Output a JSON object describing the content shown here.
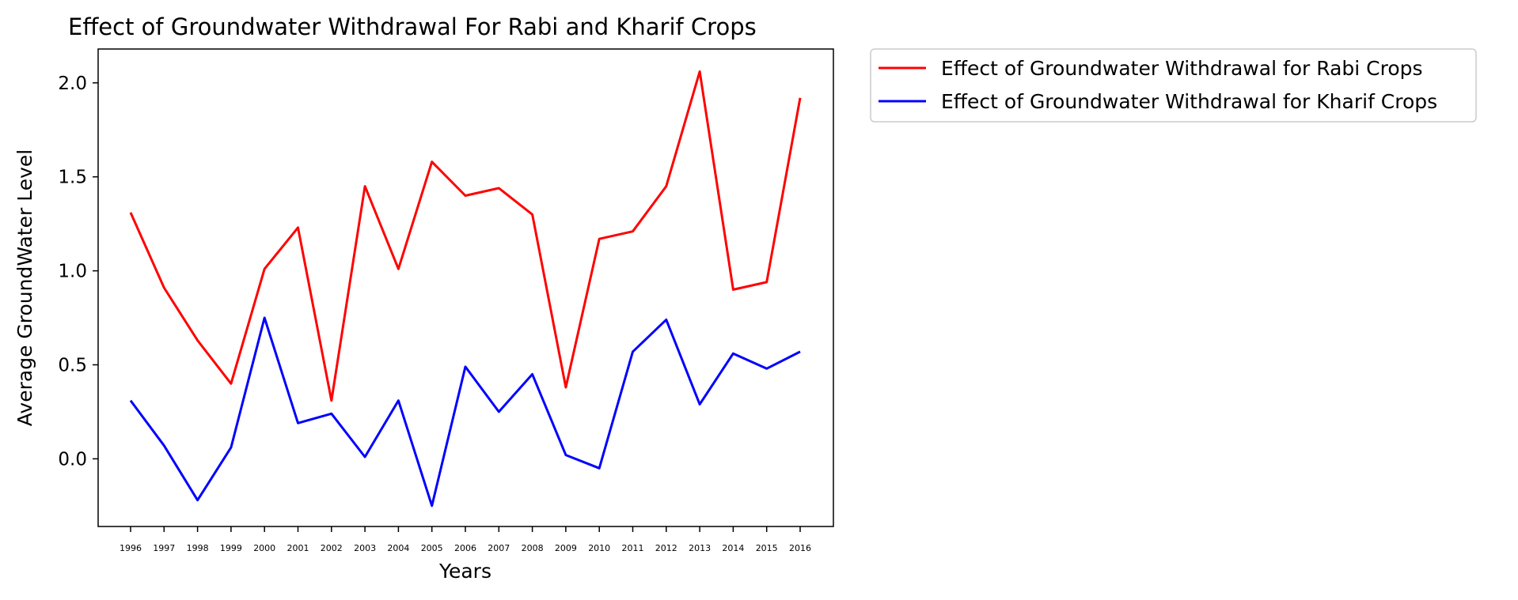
{
  "chart_data": {
    "type": "line",
    "title": "Effect of Groundwater Withdrawal For Rabi and Kharif Crops",
    "xlabel": "Years",
    "ylabel": "Average GroundWater Level",
    "categories": [
      "1996",
      "1997",
      "1998",
      "1999",
      "2000",
      "2001",
      "2002",
      "2003",
      "2004",
      "2005",
      "2006",
      "2007",
      "2008",
      "2009",
      "2010",
      "2011",
      "2012",
      "2013",
      "2014",
      "2015",
      "2016"
    ],
    "yticks": [
      "0.0",
      "0.5",
      "1.0",
      "1.5",
      "2.0"
    ],
    "ylim": [
      -0.36,
      2.18
    ],
    "grid": false,
    "legend_position": "outside-top-right",
    "series": [
      {
        "name": "Effect of Groundwater Withdrawal for Rabi Crops",
        "color": "#ff0000",
        "values": [
          1.31,
          0.91,
          0.63,
          0.4,
          1.01,
          1.23,
          0.31,
          1.45,
          1.01,
          1.58,
          1.4,
          1.44,
          1.3,
          0.38,
          1.17,
          1.21,
          1.45,
          2.06,
          0.9,
          0.94,
          1.92
        ]
      },
      {
        "name": "Effect of Groundwater Withdrawal for Kharif Crops",
        "color": "#0000ff",
        "values": [
          0.31,
          0.07,
          -0.22,
          0.06,
          0.75,
          0.19,
          0.24,
          0.01,
          0.31,
          -0.25,
          0.49,
          0.25,
          0.45,
          0.02,
          -0.05,
          0.57,
          0.74,
          0.29,
          0.56,
          0.48,
          0.57
        ]
      }
    ]
  }
}
